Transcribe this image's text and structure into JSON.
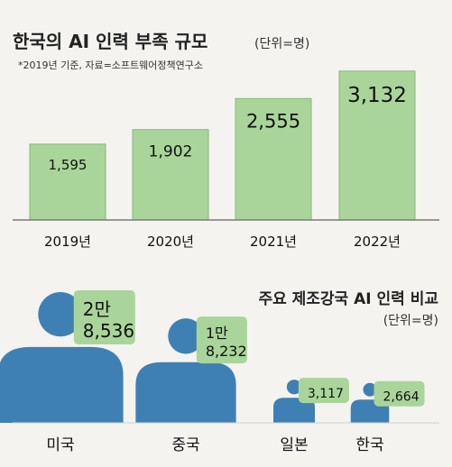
{
  "colors": {
    "bar_fill": "#a9d59a",
    "bar_stroke": "#86b879",
    "figure": "#3e80b4",
    "label_box": "#a9d59a",
    "background": "#f4f3ef"
  },
  "chart_data": [
    {
      "type": "bar",
      "title": "한국의 AI 인력 부족 규모",
      "unit_note": "(단위=명)",
      "source_note": "*2019년 기준, 자료=소프트웨어정책연구소",
      "categories": [
        "2019년",
        "2020년",
        "2021년",
        "2022년"
      ],
      "values": [
        1595,
        1902,
        2555,
        3132
      ],
      "value_labels": [
        "1,595",
        "1,902",
        "2,555",
        "3,132"
      ],
      "ylim": [
        0,
        3300
      ]
    },
    {
      "type": "bar",
      "title": "주요 제조강국 AI 인력 비교",
      "unit_note": "(단위=명)",
      "categories": [
        "미국",
        "중국",
        "일본",
        "한국"
      ],
      "values": [
        28536,
        18232,
        3117,
        2664
      ],
      "value_labels": [
        [
          "2만",
          "8,536"
        ],
        [
          "1만",
          "8,232"
        ],
        [
          "3,117"
        ],
        [
          "2,664"
        ]
      ],
      "icon": "person-icon"
    }
  ]
}
